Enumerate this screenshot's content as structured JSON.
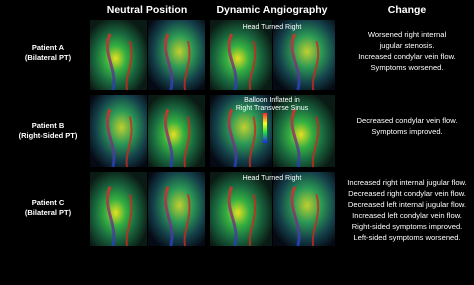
{
  "columns": [
    "Neutral Position",
    "Dynamic Angiography",
    "Change"
  ],
  "rows": [
    {
      "label": [
        "Patient A",
        "(Bilateral PT)"
      ],
      "overlay": [
        "Head Turned Right"
      ],
      "change": [
        "Worsened right internal",
        "jugular stenosis.",
        "Increased condylar vein flow.",
        "Symptoms worsened."
      ]
    },
    {
      "label": [
        "Patient B",
        "(Right-Sided PT)"
      ],
      "overlay": [
        "Balloon Inflated in",
        "Right Transverse Sinus"
      ],
      "change": [
        "Decreased condylar vein flow.",
        "Symptoms improved."
      ]
    },
    {
      "label": [
        "Patient C",
        "(Bilateral PT)"
      ],
      "overlay": [
        "Head Turned Right"
      ],
      "change": [
        "Increased right internal jugular flow.",
        "Decreased right condylar vein flow.",
        "Decreased left internal jugular flow.",
        "Increased left condylar vein flow.",
        "Right-sided symptoms improved.",
        "Left-sided symptoms worsened."
      ]
    }
  ]
}
